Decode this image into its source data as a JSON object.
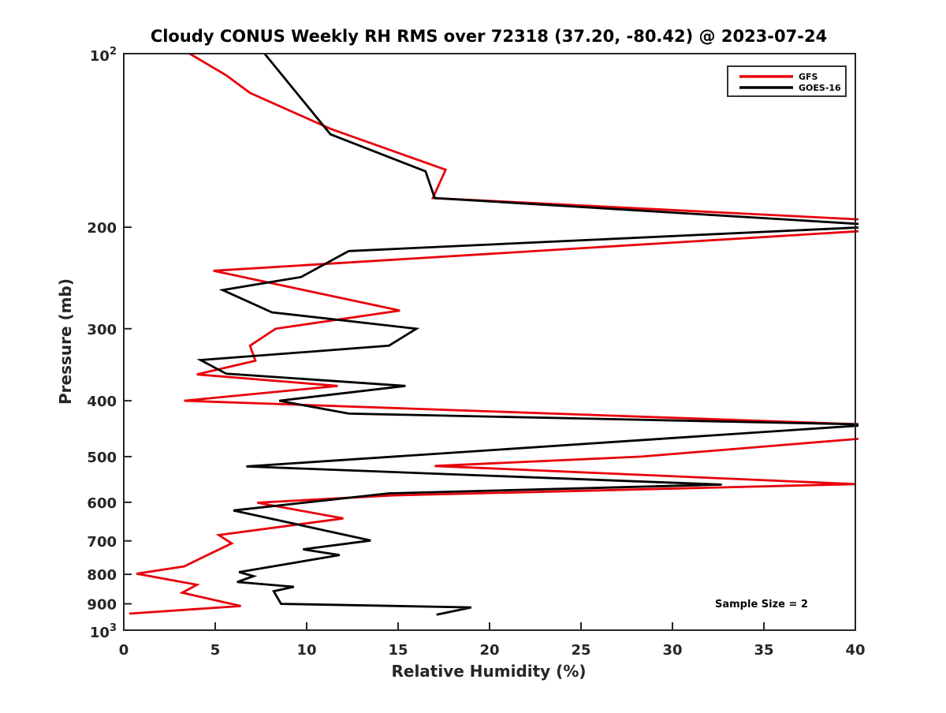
{
  "title": "Cloudy CONUS Weekly RH RMS over 72318 (37.20, -80.42) @ 2023-07-24",
  "axes": {
    "xlabel": "Relative Humidity (%)",
    "ylabel": "Pressure (mb)"
  },
  "annotation": {
    "text": "Sample Size = 2"
  },
  "legend": {
    "position": "upper right",
    "items": [
      {
        "label": "GFS",
        "color": "#e8000b"
      },
      {
        "label": "GOES-16",
        "color": "#000000"
      }
    ]
  },
  "chart_data": {
    "type": "line",
    "title": "Cloudy CONUS Weekly RH RMS over 72318 (37.20, -80.42) @ 2023-07-24",
    "xlabel": "Relative Humidity (%)",
    "ylabel": "Pressure (mb)",
    "xlim": [
      0,
      40
    ],
    "ylim": [
      1000,
      100
    ],
    "yscale": "log",
    "grid": false,
    "legend_position": "upper right",
    "annotation": "Sample Size = 2",
    "x_ticks": [
      0,
      5,
      10,
      15,
      20,
      25,
      30,
      35,
      40
    ],
    "y_ticks": [
      {
        "p": 100,
        "label": "10",
        "exp": "2"
      },
      {
        "p": 200,
        "label": "200"
      },
      {
        "p": 300,
        "label": "300"
      },
      {
        "p": 400,
        "label": "400"
      },
      {
        "p": 500,
        "label": "500"
      },
      {
        "p": 600,
        "label": "600"
      },
      {
        "p": 700,
        "label": "700"
      },
      {
        "p": 800,
        "label": "800"
      },
      {
        "p": 900,
        "label": "900"
      },
      {
        "p": 1000,
        "label": "10",
        "exp": "3"
      }
    ],
    "series": [
      {
        "name": "GFS",
        "color": "#e8000b",
        "points_format": "[relative_humidity_pct, pressure_mb]",
        "points": [
          [
            3.6,
            100
          ],
          [
            5.6,
            109
          ],
          [
            6.9,
            117
          ],
          [
            11.3,
            135
          ],
          [
            17.6,
            159
          ],
          [
            16.9,
            178
          ],
          [
            46,
            198
          ],
          [
            4.9,
            238
          ],
          [
            15.1,
            279
          ],
          [
            8.3,
            300
          ],
          [
            6.9,
            321
          ],
          [
            7.2,
            341
          ],
          [
            4.0,
            360
          ],
          [
            11.7,
            377
          ],
          [
            3.3,
            400
          ],
          [
            47,
            447
          ],
          [
            28.3,
            500
          ],
          [
            17.0,
            519
          ],
          [
            40,
            558
          ],
          [
            14.6,
            584
          ],
          [
            7.3,
            601
          ],
          [
            12.0,
            640
          ],
          [
            5.2,
            684
          ],
          [
            5.9,
            707
          ],
          [
            3.3,
            775
          ],
          [
            0.7,
            798
          ],
          [
            4.0,
            834
          ],
          [
            3.2,
            861
          ],
          [
            6.4,
            908
          ],
          [
            0.3,
            936
          ]
        ]
      },
      {
        "name": "GOES-16",
        "color": "#000000",
        "points_format": "[relative_humidity_pct, pressure_mb]",
        "points": [
          [
            7.7,
            100
          ],
          [
            11.3,
            138
          ],
          [
            16.5,
            160
          ],
          [
            17.0,
            178
          ],
          [
            42,
            199
          ],
          [
            12.3,
            220
          ],
          [
            9.7,
            244
          ],
          [
            5.4,
            257
          ],
          [
            8.1,
            281
          ],
          [
            16.0,
            300
          ],
          [
            14.5,
            321
          ],
          [
            4.2,
            340
          ],
          [
            5.6,
            359
          ],
          [
            15.4,
            377
          ],
          [
            8.5,
            400
          ],
          [
            12.3,
            421
          ],
          [
            41,
            440
          ],
          [
            6.7,
            520
          ],
          [
            32.7,
            559
          ],
          [
            14.5,
            579
          ],
          [
            6.0,
            620
          ],
          [
            13.5,
            699
          ],
          [
            9.8,
            724
          ],
          [
            11.8,
            741
          ],
          [
            6.3,
            793
          ],
          [
            7.1,
            806
          ],
          [
            6.2,
            825
          ],
          [
            9.3,
            841
          ],
          [
            8.2,
            856
          ],
          [
            8.6,
            900
          ],
          [
            19.0,
            913
          ],
          [
            17.1,
            940
          ]
        ]
      }
    ]
  },
  "layout_colors": {
    "spine": "#262626",
    "background": "#ffffff"
  }
}
